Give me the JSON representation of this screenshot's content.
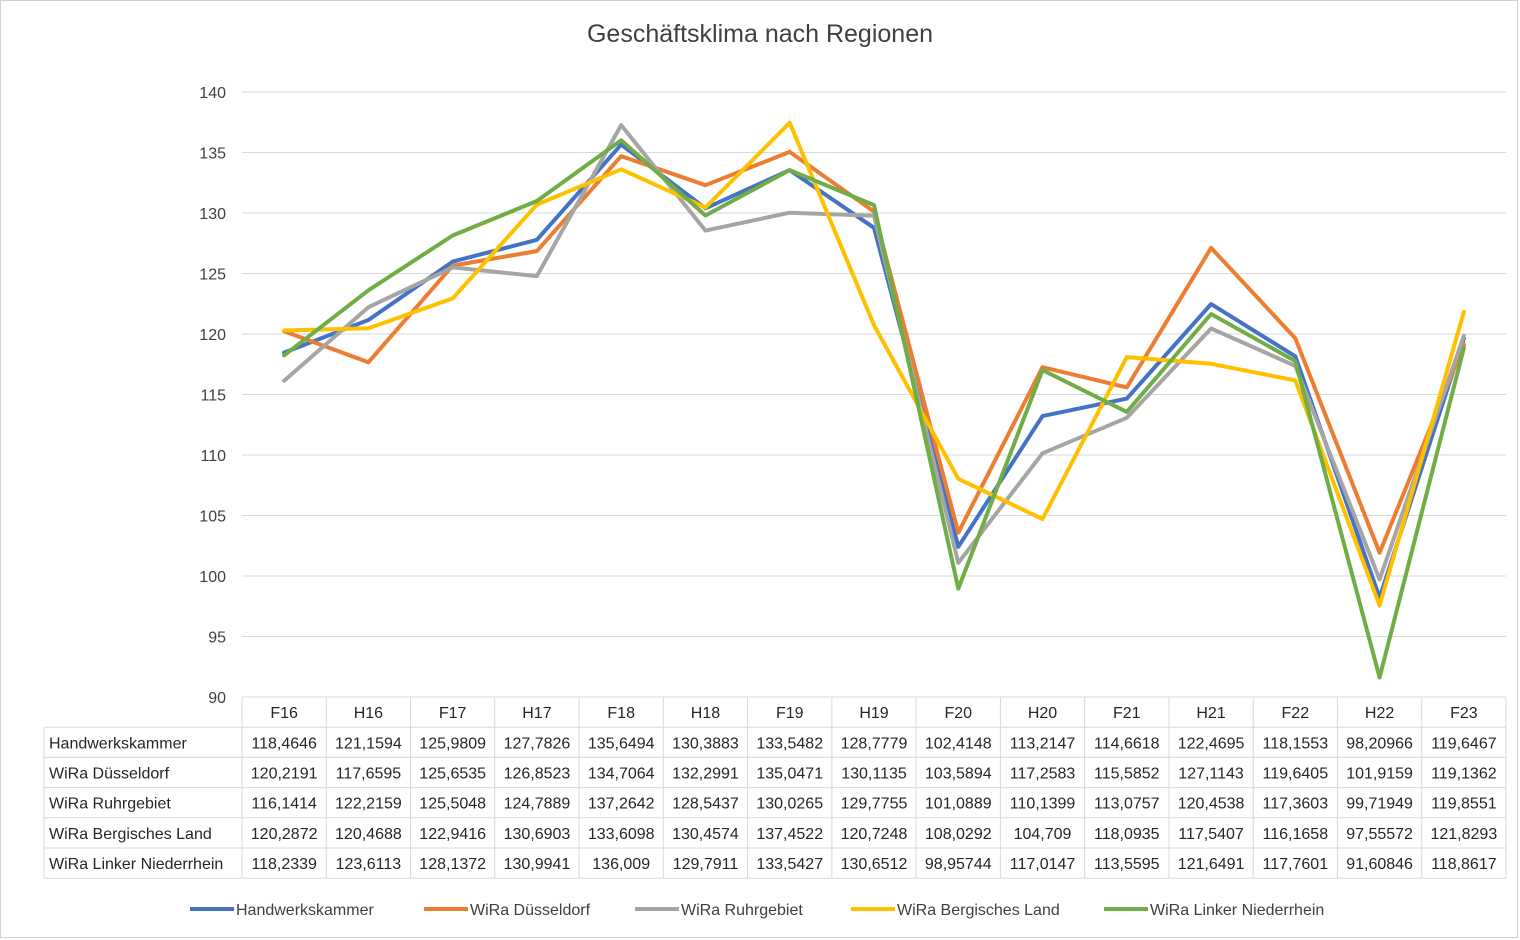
{
  "chart_data": {
    "type": "line",
    "title": "Geschäftsklima nach Regionen",
    "xlabel": "",
    "ylabel": "",
    "ylim": [
      90,
      140
    ],
    "yticks": [
      90,
      95,
      100,
      105,
      110,
      115,
      120,
      125,
      130,
      135,
      140
    ],
    "grid": true,
    "legend_position": "bottom",
    "categories": [
      "F16",
      "H16",
      "F17",
      "H17",
      "F18",
      "H18",
      "F19",
      "H19",
      "F20",
      "H20",
      "F21",
      "H21",
      "F22",
      "H22",
      "F23"
    ],
    "series": [
      {
        "name": "Handwerkskammer",
        "color": "#4472c4",
        "values": [
          118.4646,
          121.1594,
          125.9809,
          127.7826,
          135.6494,
          130.3883,
          133.5482,
          128.7779,
          102.4148,
          113.2147,
          114.6618,
          122.4695,
          118.1553,
          98.20966,
          119.6467
        ],
        "labels": [
          "118,4646",
          "121,1594",
          "125,9809",
          "127,7826",
          "135,6494",
          "130,3883",
          "133,5482",
          "128,7779",
          "102,4148",
          "113,2147",
          "114,6618",
          "122,4695",
          "118,1553",
          "98,20966",
          "119,6467"
        ]
      },
      {
        "name": "WiRa Düsseldorf",
        "color": "#ed7d31",
        "values": [
          120.2191,
          117.6595,
          125.6535,
          126.8523,
          134.7064,
          132.2991,
          135.0471,
          130.1135,
          103.5894,
          117.2583,
          115.5852,
          127.1143,
          119.6405,
          101.9159,
          119.1362
        ],
        "labels": [
          "120,2191",
          "117,6595",
          "125,6535",
          "126,8523",
          "134,7064",
          "132,2991",
          "135,0471",
          "130,1135",
          "103,5894",
          "117,2583",
          "115,5852",
          "127,1143",
          "119,6405",
          "101,9159",
          "119,1362"
        ]
      },
      {
        "name": "WiRa Ruhrgebiet",
        "color": "#a5a5a5",
        "values": [
          116.1414,
          122.2159,
          125.5048,
          124.7889,
          137.2642,
          128.5437,
          130.0265,
          129.7755,
          101.0889,
          110.1399,
          113.0757,
          120.4538,
          117.3603,
          99.71949,
          119.8551
        ],
        "labels": [
          "116,1414",
          "122,2159",
          "125,5048",
          "124,7889",
          "137,2642",
          "128,5437",
          "130,0265",
          "129,7755",
          "101,0889",
          "110,1399",
          "113,0757",
          "120,4538",
          "117,3603",
          "99,71949",
          "119,8551"
        ]
      },
      {
        "name": "WiRa Bergisches Land",
        "color": "#ffc000",
        "values": [
          120.2872,
          120.4688,
          122.9416,
          130.6903,
          133.6098,
          130.4574,
          137.4522,
          120.7248,
          108.0292,
          104.709,
          118.0935,
          117.5407,
          116.1658,
          97.55572,
          121.8293
        ],
        "labels": [
          "120,2872",
          "120,4688",
          "122,9416",
          "130,6903",
          "133,6098",
          "130,4574",
          "137,4522",
          "120,7248",
          "108,0292",
          "104,709",
          "118,0935",
          "117,5407",
          "116,1658",
          "97,55572",
          "121,8293"
        ]
      },
      {
        "name": "WiRa Linker Niederrhein",
        "color": "#70ad47",
        "values": [
          118.2339,
          123.6113,
          128.1372,
          130.9941,
          136.009,
          129.7911,
          133.5427,
          130.6512,
          98.95744,
          117.0147,
          113.5595,
          121.6491,
          117.7601,
          91.60846,
          118.8617
        ],
        "labels": [
          "118,2339",
          "123,6113",
          "128,1372",
          "130,9941",
          "136,009",
          "129,7911",
          "133,5427",
          "130,6512",
          "98,95744",
          "117,0147",
          "113,5595",
          "121,6491",
          "117,7601",
          "91,60846",
          "118,8617"
        ]
      }
    ]
  }
}
